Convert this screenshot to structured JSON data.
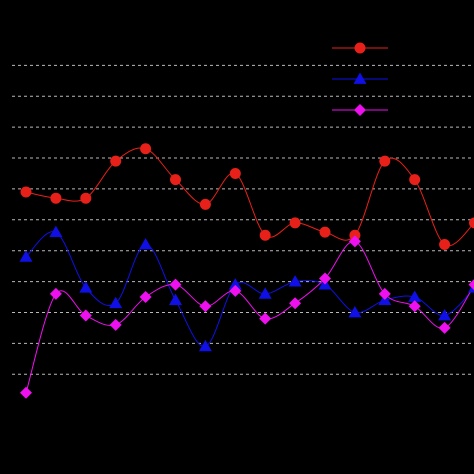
{
  "chart_data": {
    "type": "line",
    "title": "",
    "xlabel": "",
    "ylabel": "",
    "x": [
      1,
      2,
      3,
      4,
      5,
      6,
      7,
      8,
      9,
      10,
      11,
      12,
      13,
      14,
      15,
      16
    ],
    "xlim": [
      0.5,
      16.5
    ],
    "ylim": [
      0,
      13
    ],
    "grid": {
      "horizontal": true,
      "style": "dashed",
      "values": [
        2,
        3,
        4,
        5,
        6,
        7,
        8,
        9,
        10,
        11,
        12
      ]
    },
    "legend": {
      "placement": "top-right"
    },
    "series": [
      {
        "values": [
          7.9,
          7.7,
          7.7,
          8.9,
          9.3,
          8.3,
          7.5,
          8.5,
          6.5,
          6.9,
          6.6,
          6.5,
          8.9,
          8.3,
          6.2,
          6.9
        ],
        "color": "#e8201a",
        "marker": "circle",
        "line": "smooth"
      },
      {
        "values": [
          5.8,
          6.6,
          4.8,
          4.3,
          6.2,
          4.4,
          2.9,
          4.9,
          4.6,
          5.0,
          4.9,
          4.0,
          4.4,
          4.5,
          3.9,
          4.8
        ],
        "color": "#1010e6",
        "marker": "triangle",
        "line": "smooth"
      },
      {
        "values": [
          1.4,
          4.6,
          3.9,
          3.6,
          4.5,
          4.9,
          4.2,
          4.7,
          3.8,
          4.3,
          5.1,
          6.3,
          4.6,
          4.2,
          3.5,
          4.9
        ],
        "color": "#ee10ee",
        "marker": "diamond",
        "line": "smooth"
      }
    ]
  }
}
